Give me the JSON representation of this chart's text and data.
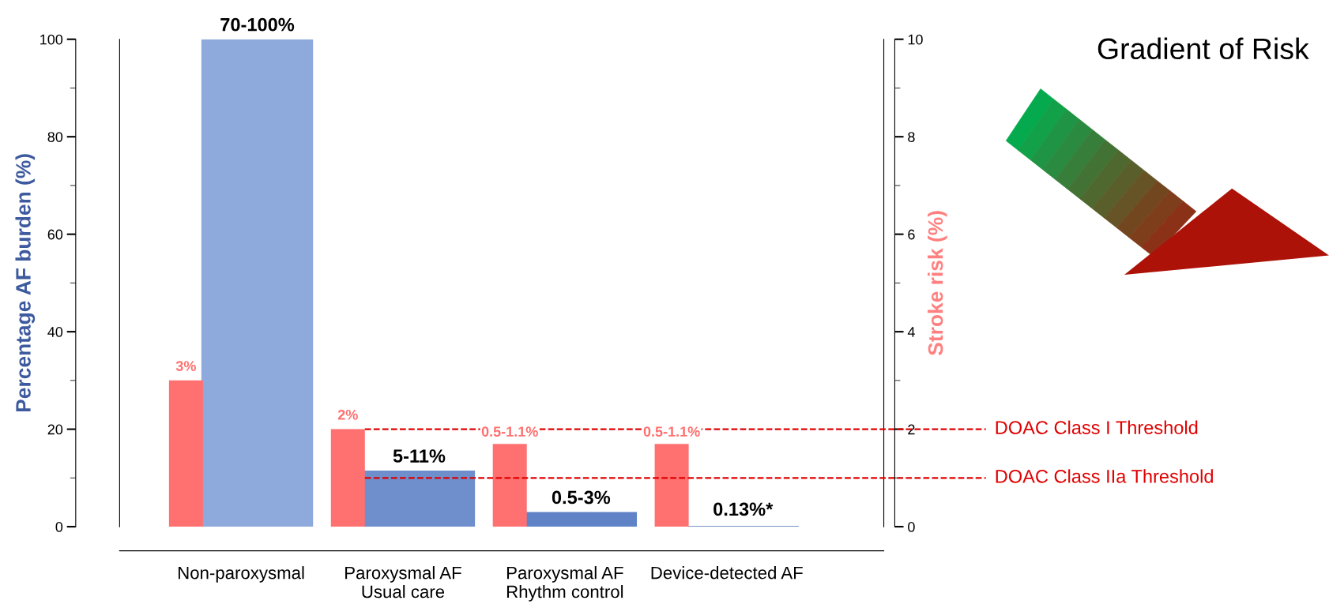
{
  "chart_data": {
    "type": "bar",
    "categories": [
      "Non-paroxysmal",
      "Paroxysmal AF\nUsual care",
      "Paroxysmal AF\nRhythm control",
      "Device-detected AF"
    ],
    "ylabel": "Percentage AF burden (%)",
    "y2label": "Stroke risk (%)",
    "series": [
      {
        "name": null,
        "axis": "y2",
        "color": "#ff7070",
        "values": [
          3,
          2,
          1.7,
          1.7
        ],
        "value_labels": [
          "3%",
          "2%",
          null,
          null
        ]
      },
      {
        "name": null,
        "axis": "y",
        "colors": [
          "#8eaadc",
          "#6e8fcb",
          "#5f83c6",
          "#4a6fb5"
        ],
        "values": [
          100,
          11.5,
          3,
          0.13
        ],
        "value_labels": [
          null,
          null,
          null,
          "0.13%*"
        ]
      }
    ],
    "ylim": [
      0,
      100
    ],
    "yticks": [
      0,
      20,
      40,
      60,
      80,
      100
    ],
    "y2lim": [
      0,
      10
    ],
    "y2ticks": [
      0,
      2,
      4,
      6,
      8,
      10
    ],
    "ref_lines": [
      {
        "axis": "y2",
        "value": 2,
        "label": "DOAC Class I Threshold",
        "color": "#e00000",
        "line_style": "dashed"
      },
      {
        "axis": "y2",
        "value": 1,
        "label": "DOAC Class IIa Threshold",
        "color": "#e00000",
        "line_style": "dashed"
      }
    ],
    "annotations": [
      "Gradient of Risk",
      {
        "text": "70-100%",
        "x": "Non-paroxysmal",
        "y": 100
      },
      {
        "text": "5-11%",
        "x": "Paroxysmal AF\nUsual care",
        "y": 11.5
      },
      {
        "text": "0.5-3%",
        "x": "Paroxysmal AF\nRhythm control",
        "y": 3
      },
      "0.5-1.1%",
      "0.5-1.1%"
    ],
    "grid": false,
    "legend": false
  }
}
